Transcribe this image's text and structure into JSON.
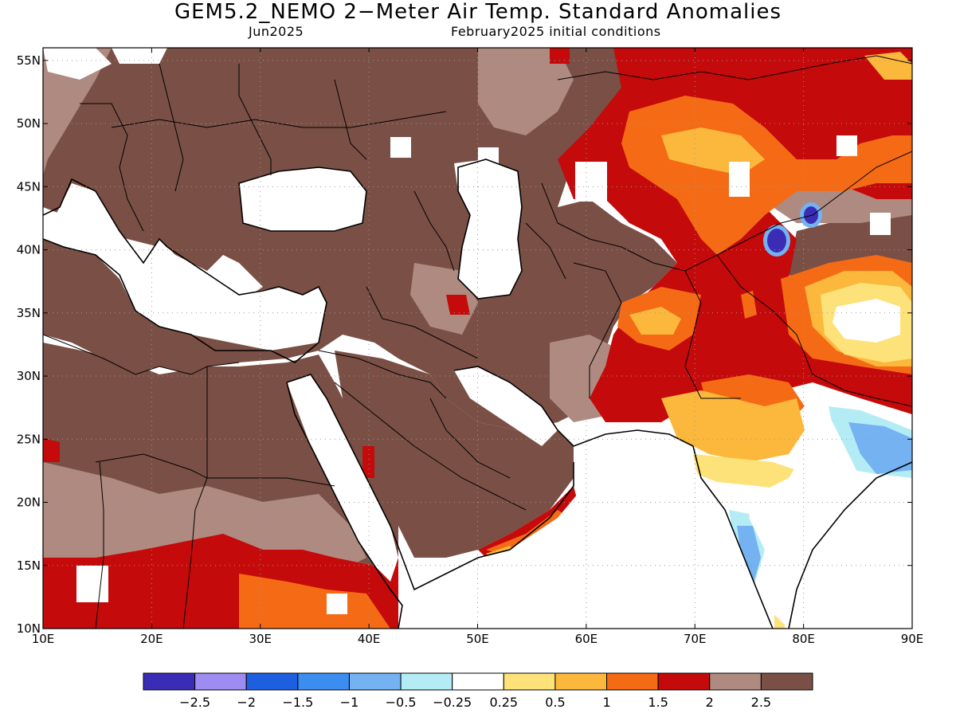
{
  "title": "GEM5.2_NEMO 2−Meter Air Temp. Standard Anomalies",
  "subtitle_left": "Jun2025",
  "subtitle_right": "February2025 initial conditions",
  "map": {
    "lon_range": [
      10,
      90
    ],
    "lat_range": [
      10,
      56
    ],
    "lat_ticks": [
      {
        "value": 10,
        "label": "10N"
      },
      {
        "value": 15,
        "label": "15N"
      },
      {
        "value": 20,
        "label": "20N"
      },
      {
        "value": 25,
        "label": "25N"
      },
      {
        "value": 30,
        "label": "30N"
      },
      {
        "value": 35,
        "label": "35N"
      },
      {
        "value": 40,
        "label": "40N"
      },
      {
        "value": 45,
        "label": "45N"
      },
      {
        "value": 50,
        "label": "50N"
      },
      {
        "value": 55,
        "label": "55N"
      }
    ],
    "lon_ticks": [
      {
        "value": 10,
        "label": "10E"
      },
      {
        "value": 20,
        "label": "20E"
      },
      {
        "value": 30,
        "label": "30E"
      },
      {
        "value": 40,
        "label": "40E"
      },
      {
        "value": 50,
        "label": "50E"
      },
      {
        "value": 60,
        "label": "60E"
      },
      {
        "value": 70,
        "label": "70E"
      },
      {
        "value": 80,
        "label": "80E"
      },
      {
        "value": 90,
        "label": "90E"
      }
    ],
    "grid_lines": "dotted"
  },
  "colorbar": {
    "colors": [
      "#3b2cb5",
      "#9f8cf0",
      "#1e5fe0",
      "#3c8df0",
      "#74b2f2",
      "#b4ecf6",
      "#ffffff",
      "#fde27a",
      "#fbb83c",
      "#f56a14",
      "#c40a0a",
      "#ae8a80",
      "#7a4f45"
    ],
    "labels": [
      "−2.5",
      "−2",
      "−1.5",
      "−1",
      "−0.5",
      "−0.25",
      "0.25",
      "0.5",
      "1",
      "1.5",
      "2",
      "2.5"
    ]
  }
}
